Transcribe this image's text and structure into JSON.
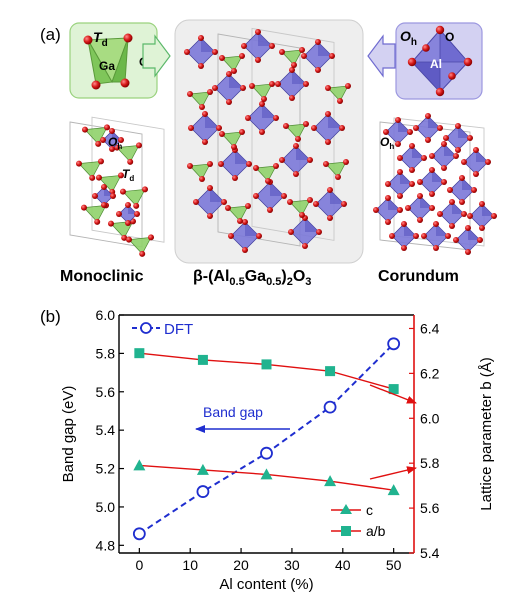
{
  "panel_a": {
    "label": "(a)",
    "td_box": {
      "symbol": "T",
      "sub": "d",
      "atom_label": "Ga",
      "o_label": "O"
    },
    "oh_box": {
      "symbol": "O",
      "sub": "h",
      "atom_label": "Al",
      "o_label": "O"
    },
    "mono_oh": {
      "symbol": "O",
      "sub": "h"
    },
    "mono_td": {
      "symbol": "T",
      "sub": "d"
    },
    "cor_oh": {
      "symbol": "O",
      "sub": "h"
    },
    "captions": {
      "left": "Monoclinic",
      "center": {
        "p1": "β-(Al",
        "s1": "0.5",
        "p2": "Ga",
        "s2": "0.5",
        "p3": ")",
        "s3": "2",
        "p4": "O",
        "s4": "3"
      },
      "right": "Corundum"
    },
    "colors": {
      "td": "#8fd16a",
      "oh": "#7b78d8",
      "oxygen": "#d81a1a",
      "green_box": "#dff3d6",
      "purple_box": "#d3d1f2",
      "center_box": "#eeeeee"
    }
  },
  "panel_b": {
    "label": "(b)",
    "arrow_text": "Band gap",
    "legend_dft": "DFT",
    "legend_c": "c",
    "legend_ab": "a/b"
  },
  "chart_data": {
    "type": "line",
    "xlabel": "Al content (%)",
    "ylabel_left": "Band gap (eV)",
    "ylabel_right": "Lattice parameter b (Å)",
    "x_ticks": [
      0,
      10,
      20,
      30,
      40,
      50
    ],
    "y_left_ticks": [
      "4.8",
      "5.0",
      "5.2",
      "5.4",
      "5.6",
      "5.8",
      "6.0"
    ],
    "y_right_ticks": [
      "5.4",
      "5.6",
      "5.8",
      "6.0",
      "6.2",
      "6.4"
    ],
    "xlim": [
      -4,
      54
    ],
    "ylim_left": [
      4.76,
      6.0
    ],
    "ylim_right": [
      5.4,
      6.46
    ],
    "series": [
      {
        "name": "DFT",
        "axis": "left",
        "style": "dashed-circle",
        "color": "#1f2ecf",
        "x": [
          0,
          12.5,
          25,
          37.5,
          50
        ],
        "y": [
          4.86,
          5.08,
          5.28,
          5.52,
          5.85
        ]
      },
      {
        "name": "a/b",
        "axis": "right",
        "style": "square",
        "color": "#20b38f",
        "x": [
          0,
          12.5,
          25,
          37.5,
          50
        ],
        "y": [
          6.29,
          6.26,
          6.24,
          6.21,
          6.13
        ]
      },
      {
        "name": "c",
        "axis": "right",
        "style": "triangle",
        "color": "#20b38f",
        "x": [
          0,
          12.5,
          25,
          37.5,
          50
        ],
        "y": [
          5.79,
          5.77,
          5.75,
          5.72,
          5.68
        ]
      }
    ],
    "left_axis_color": "#1f2ecf",
    "right_axis_color": "#e01010",
    "fit_line_color": "#e01010"
  }
}
